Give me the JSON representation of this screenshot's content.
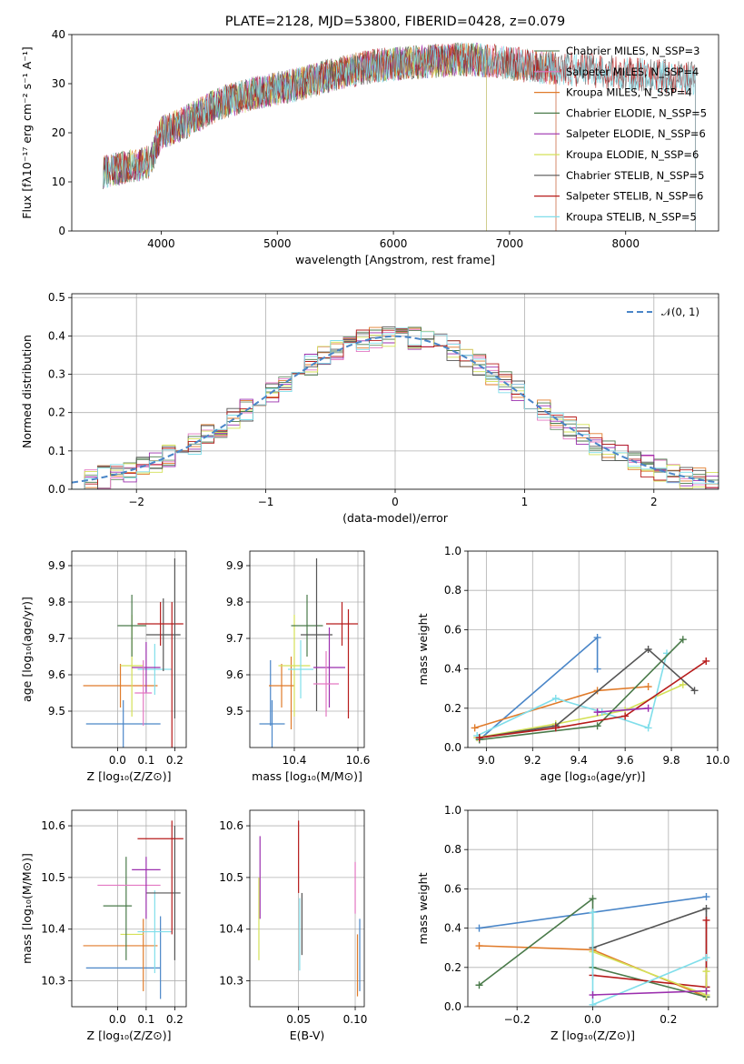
{
  "chart_data": [
    {
      "id": "spectrum",
      "type": "line",
      "title": "PLATE=2128, MJD=53800, FIBERID=0428, z=0.079",
      "xlabel": "wavelength [Angstrom, rest frame]",
      "ylabel": "Flux [fλ10⁻¹⁷ erg cm⁻² s⁻¹ A⁻¹]",
      "xlim": [
        3230,
        8800
      ],
      "ylim": [
        0,
        40
      ],
      "xticks": [
        4000,
        5000,
        6000,
        7000,
        8000
      ],
      "yticks": [
        0,
        10,
        20,
        30,
        40
      ],
      "grid": false,
      "legend_position": "top-right",
      "continuum": {
        "x": [
          3500,
          3700,
          3900,
          4000,
          4200,
          4500,
          4800,
          5000,
          5200,
          5500,
          5800,
          6000,
          6300,
          6600,
          6900,
          7200,
          7500,
          7800,
          8000,
          8300,
          8600
        ],
        "y": [
          12,
          13,
          14,
          20,
          22,
          26,
          28,
          29,
          30,
          32,
          33.5,
          34,
          34.5,
          35,
          34.5,
          33.5,
          33,
          32.5,
          32,
          31.5,
          31
        ]
      },
      "series": [
        {
          "name": "Chabrier MILES, N_SSP=3",
          "color": "#6b8e6b",
          "x_end": 7400
        },
        {
          "name": "Salpeter MILES, N_SSP=4",
          "color": "#e377c2",
          "x_end": 7400
        },
        {
          "name": "Kroupa MILES, N_SSP=4",
          "color": "#e07b2a",
          "x_end": 7400
        },
        {
          "name": "Chabrier ELODIE, N_SSP=5",
          "color": "#4a7a4a",
          "x_end": 6800
        },
        {
          "name": "Salpeter ELODIE, N_SSP=6",
          "color": "#9b2fae",
          "x_end": 6800
        },
        {
          "name": "Kroupa ELODIE, N_SSP=6",
          "color": "#d4e157",
          "x_end": 6800
        },
        {
          "name": "Chabrier STELIB, N_SSP=5",
          "color": "#555555",
          "x_end": 8600
        },
        {
          "name": "Salpeter STELIB, N_SSP=6",
          "color": "#b71c1c",
          "x_end": 8600
        },
        {
          "name": "Kroupa STELIB, N_SSP=5",
          "color": "#80deea",
          "x_end": 8600
        }
      ]
    },
    {
      "id": "residuals",
      "type": "line",
      "xlabel": "(data-model)/error",
      "ylabel": "Normed distribution",
      "xlim": [
        -2.5,
        2.5
      ],
      "ylim": [
        0,
        0.51
      ],
      "xticks": [
        -2,
        -1,
        0,
        1,
        2
      ],
      "yticks": [
        0.0,
        0.1,
        0.2,
        0.3,
        0.4,
        0.5
      ],
      "grid": true,
      "legend_position": "top-right",
      "reference_curve": {
        "name": "𝒩(0, 1)",
        "color": "#4a86c8",
        "style": "dashed"
      },
      "bin_width": 0.1,
      "series_colors": [
        "#6b8e6b",
        "#e377c2",
        "#e07b2a",
        "#4a7a4a",
        "#9b2fae",
        "#d4e157",
        "#555555",
        "#b71c1c",
        "#80deea"
      ]
    },
    {
      "id": "z-age",
      "type": "scatter",
      "xlabel": "Z [log₁₀(Z/Z⊙)]",
      "ylabel": "age  [log₁₀(age/yr)]",
      "xlim": [
        -0.16,
        0.24
      ],
      "ylim": [
        9.4,
        9.94
      ],
      "xticks": [
        0.0,
        0.1,
        0.2
      ],
      "yticks": [
        9.5,
        9.6,
        9.7,
        9.8,
        9.9
      ],
      "grid": true,
      "points": [
        {
          "color": "#4a86c8",
          "x": 0.02,
          "xerr": 0.13,
          "y": 9.465,
          "yerr": 0.065
        },
        {
          "color": "#e07b2a",
          "x": 0.01,
          "xerr": 0.13,
          "y": 9.57,
          "yerr": 0.06
        },
        {
          "color": "#d4e157",
          "x": 0.05,
          "xerr": 0.04,
          "y": 9.625,
          "yerr": 0.14
        },
        {
          "color": "#80deea",
          "x": 0.13,
          "xerr": 0.06,
          "y": 9.615,
          "yerr": 0.07
        },
        {
          "color": "#4a7a4a",
          "x": 0.05,
          "xerr": 0.05,
          "y": 9.735,
          "yerr": 0.085
        },
        {
          "color": "#555555",
          "x": 0.16,
          "xerr": 0.06,
          "y": 9.71,
          "yerr": 0.1
        },
        {
          "color": "#b71c1c",
          "x": 0.15,
          "xerr": 0.08,
          "y": 9.74,
          "yerr": 0.06
        },
        {
          "color": "#9b2fae",
          "x": 0.1,
          "xerr": 0.05,
          "y": 9.62,
          "yerr": 0.07
        },
        {
          "color": "#e377c2",
          "x": 0.09,
          "xerr": 0.03,
          "y": 9.55,
          "yerr": 0.09
        },
        {
          "color": "#555555",
          "x": 0.2,
          "xerr": 0.0,
          "y": 9.7,
          "yerr": 0.22
        },
        {
          "color": "#b71c1c",
          "x": 0.19,
          "xerr": 0.0,
          "y": 9.6,
          "yerr": 0.2
        }
      ]
    },
    {
      "id": "mass-age",
      "type": "scatter",
      "xlabel": "mass [log₁₀(M/M⊙)]",
      "ylabel": "",
      "xlim": [
        10.26,
        10.62
      ],
      "ylim": [
        9.4,
        9.94
      ],
      "xticks": [
        10.4,
        10.6
      ],
      "yticks": [
        9.5,
        9.6,
        9.7,
        9.8,
        9.9
      ],
      "grid": true,
      "points": [
        {
          "color": "#4a86c8",
          "x": 10.33,
          "xerr": 0.04,
          "y": 9.465,
          "yerr": 0.065
        },
        {
          "color": "#4a86c8",
          "x": 10.325,
          "xerr": 0.0,
          "y": 9.55,
          "yerr": 0.09
        },
        {
          "color": "#e07b2a",
          "x": 10.36,
          "xerr": 0.04,
          "y": 9.57,
          "yerr": 0.06
        },
        {
          "color": "#e07b2a",
          "x": 10.39,
          "xerr": 0.0,
          "y": 9.55,
          "yerr": 0.1
        },
        {
          "color": "#d4e157",
          "x": 10.4,
          "xerr": 0.05,
          "y": 9.625,
          "yerr": 0.14
        },
        {
          "color": "#80deea",
          "x": 10.42,
          "xerr": 0.04,
          "y": 9.615,
          "yerr": 0.08
        },
        {
          "color": "#4a7a4a",
          "x": 10.44,
          "xerr": 0.05,
          "y": 9.735,
          "yerr": 0.085
        },
        {
          "color": "#555555",
          "x": 10.47,
          "xerr": 0.05,
          "y": 9.71,
          "yerr": 0.21
        },
        {
          "color": "#9b2fae",
          "x": 10.51,
          "xerr": 0.05,
          "y": 9.62,
          "yerr": 0.11
        },
        {
          "color": "#e377c2",
          "x": 10.5,
          "xerr": 0.04,
          "y": 9.575,
          "yerr": 0.09
        },
        {
          "color": "#b71c1c",
          "x": 10.55,
          "xerr": 0.05,
          "y": 9.74,
          "yerr": 0.06
        },
        {
          "color": "#b71c1c",
          "x": 10.57,
          "xerr": 0.0,
          "y": 9.63,
          "yerr": 0.15
        }
      ]
    },
    {
      "id": "age-mw",
      "type": "line",
      "xlabel": "age  [log₁₀(age/yr)]",
      "ylabel": "mass weight",
      "xlim": [
        8.92,
        10.0
      ],
      "ylim": [
        0,
        1
      ],
      "xticks": [
        9.0,
        9.2,
        9.4,
        9.6,
        9.8,
        10.0
      ],
      "yticks": [
        0.0,
        0.2,
        0.4,
        0.6,
        0.8,
        1.0
      ],
      "grid": true,
      "series": [
        {
          "color": "#4a86c8",
          "x": [
            8.97,
            9.48,
            9.48
          ],
          "y": [
            0.04,
            0.56,
            0.4
          ]
        },
        {
          "color": "#e07b2a",
          "x": [
            8.95,
            9.48,
            9.7
          ],
          "y": [
            0.1,
            0.29,
            0.31
          ]
        },
        {
          "color": "#d4e157",
          "x": [
            8.96,
            9.3,
            9.6,
            9.85
          ],
          "y": [
            0.05,
            0.12,
            0.19,
            0.32
          ]
        },
        {
          "color": "#80deea",
          "x": [
            8.96,
            9.3,
            9.5,
            9.7,
            9.78
          ],
          "y": [
            0.06,
            0.25,
            0.18,
            0.1,
            0.48
          ]
        },
        {
          "color": "#4a7a4a",
          "x": [
            8.97,
            9.48,
            9.85
          ],
          "y": [
            0.04,
            0.11,
            0.55
          ]
        },
        {
          "color": "#555555",
          "x": [
            8.97,
            9.3,
            9.7,
            9.9
          ],
          "y": [
            0.05,
            0.11,
            0.5,
            0.29
          ]
        },
        {
          "color": "#b71c1c",
          "x": [
            8.97,
            9.3,
            9.6,
            9.95
          ],
          "y": [
            0.05,
            0.1,
            0.16,
            0.44
          ]
        },
        {
          "color": "#9b2fae",
          "x": [
            9.48,
            9.7
          ],
          "y": [
            0.18,
            0.2
          ]
        }
      ]
    },
    {
      "id": "z-mass",
      "type": "scatter",
      "xlabel": "Z [log₁₀(Z/Z⊙)]",
      "ylabel": "mass [log₁₀(M/M⊙)]",
      "xlim": [
        -0.16,
        0.24
      ],
      "ylim": [
        10.25,
        10.63
      ],
      "xticks": [
        0.0,
        0.1,
        0.2
      ],
      "yticks": [
        10.3,
        10.4,
        10.5,
        10.6
      ],
      "grid": true,
      "points": [
        {
          "color": "#4a86c8",
          "x": 0.02,
          "xerr": 0.13,
          "y": 10.325,
          "yerr": 0.0
        },
        {
          "color": "#4a86c8",
          "x": 0.15,
          "xerr": 0.0,
          "y": 10.345,
          "yerr": 0.08
        },
        {
          "color": "#e07b2a",
          "x": 0.01,
          "xerr": 0.13,
          "y": 10.368,
          "yerr": 0.0
        },
        {
          "color": "#e07b2a",
          "x": 0.09,
          "xerr": 0.0,
          "y": 10.35,
          "yerr": 0.07
        },
        {
          "color": "#d4e157",
          "x": 0.05,
          "xerr": 0.04,
          "y": 10.39,
          "yerr": 0.0
        },
        {
          "color": "#80deea",
          "x": 0.13,
          "xerr": 0.06,
          "y": 10.395,
          "yerr": 0.08
        },
        {
          "color": "#4a7a4a",
          "x": 0.0,
          "xerr": 0.05,
          "y": 10.445,
          "yerr": 0.0
        },
        {
          "color": "#4a7a4a",
          "x": 0.03,
          "xerr": 0.0,
          "y": 10.44,
          "yerr": 0.1
        },
        {
          "color": "#555555",
          "x": 0.16,
          "xerr": 0.06,
          "y": 10.47,
          "yerr": 0.0
        },
        {
          "color": "#555555",
          "x": 0.2,
          "xerr": 0.0,
          "y": 10.47,
          "yerr": 0.13
        },
        {
          "color": "#e377c2",
          "x": 0.04,
          "xerr": 0.11,
          "y": 10.485,
          "yerr": 0.0
        },
        {
          "color": "#9b2fae",
          "x": 0.1,
          "xerr": 0.05,
          "y": 10.515,
          "yerr": 0.0
        },
        {
          "color": "#9b2fae",
          "x": 0.1,
          "xerr": 0.0,
          "y": 10.48,
          "yerr": 0.06
        },
        {
          "color": "#b71c1c",
          "x": 0.15,
          "xerr": 0.08,
          "y": 10.575,
          "yerr": 0.0
        },
        {
          "color": "#b71c1c",
          "x": 0.19,
          "xerr": 0.0,
          "y": 10.5,
          "yerr": 0.11
        }
      ]
    },
    {
      "id": "ebv-mass",
      "type": "scatter",
      "xlabel": "E(B-V)",
      "ylabel": "",
      "xlim": [
        0.007,
        0.108
      ],
      "ylim": [
        10.25,
        10.63
      ],
      "xticks": [
        0.05,
        0.1
      ],
      "yticks": [
        10.3,
        10.4,
        10.5,
        10.6
      ],
      "grid": true,
      "points": [
        {
          "color": "#9b2fae",
          "x": 0.016,
          "xerr": 0.0,
          "y": 10.5,
          "yerr": 0.08
        },
        {
          "color": "#d4e157",
          "x": 0.015,
          "xerr": 0.0,
          "y": 10.42,
          "yerr": 0.08
        },
        {
          "color": "#b71c1c",
          "x": 0.05,
          "xerr": 0.0,
          "y": 10.54,
          "yerr": 0.07
        },
        {
          "color": "#555555",
          "x": 0.053,
          "xerr": 0.0,
          "y": 10.41,
          "yerr": 0.06
        },
        {
          "color": "#80deea",
          "x": 0.051,
          "xerr": 0.0,
          "y": 10.39,
          "yerr": 0.07
        },
        {
          "color": "#e377c2",
          "x": 0.1,
          "xerr": 0.0,
          "y": 10.48,
          "yerr": 0.05
        },
        {
          "color": "#4a86c8",
          "x": 0.104,
          "xerr": 0.0,
          "y": 10.35,
          "yerr": 0.07
        },
        {
          "color": "#e07b2a",
          "x": 0.102,
          "xerr": 0.0,
          "y": 10.33,
          "yerr": 0.06
        }
      ]
    },
    {
      "id": "z-mw",
      "type": "line",
      "xlabel": "Z [log₁₀(Z/Z⊙)]",
      "ylabel": "mass weight",
      "xlim": [
        -0.33,
        0.33
      ],
      "ylim": [
        0,
        1
      ],
      "xticks": [
        -0.2,
        0.0,
        0.2
      ],
      "yticks": [
        0.0,
        0.2,
        0.4,
        0.6,
        0.8,
        1.0
      ],
      "grid": true,
      "series": [
        {
          "color": "#4a86c8",
          "x": [
            -0.3,
            0.3
          ],
          "y": [
            0.4,
            0.56
          ]
        },
        {
          "color": "#e07b2a",
          "x": [
            -0.3,
            0.0,
            0.3
          ],
          "y": [
            0.31,
            0.29,
            0.05
          ]
        },
        {
          "color": "#4a7a4a",
          "x": [
            -0.3,
            0.0,
            0.0,
            0.3
          ],
          "y": [
            0.11,
            0.55,
            0.2,
            0.05
          ]
        },
        {
          "color": "#555555",
          "x": [
            0.0,
            0.3,
            0.3
          ],
          "y": [
            0.3,
            0.5,
            0.1
          ]
        },
        {
          "color": "#b71c1c",
          "x": [
            0.0,
            0.3,
            0.3
          ],
          "y": [
            0.16,
            0.1,
            0.44
          ]
        },
        {
          "color": "#d4e157",
          "x": [
            0.0,
            0.3,
            0.3
          ],
          "y": [
            0.28,
            0.06,
            0.18
          ]
        },
        {
          "color": "#80deea",
          "x": [
            0.0,
            0.0,
            0.3
          ],
          "y": [
            0.48,
            0.01,
            0.25
          ]
        },
        {
          "color": "#9b2fae",
          "x": [
            0.0,
            0.3
          ],
          "y": [
            0.06,
            0.08
          ]
        }
      ]
    }
  ]
}
